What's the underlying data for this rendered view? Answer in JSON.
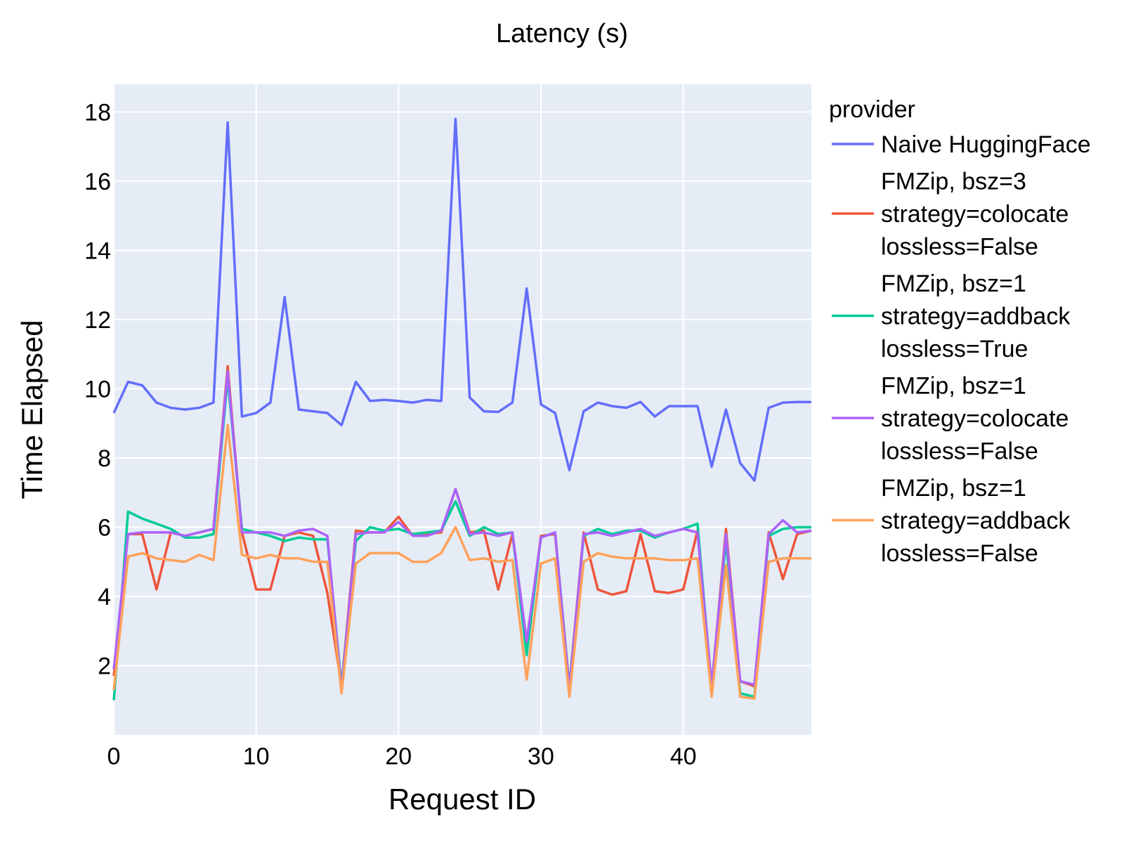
{
  "chart_data": {
    "type": "line",
    "title": "Latency (s)",
    "xlabel": "Request ID",
    "ylabel": "Time Elapsed",
    "xlim": [
      0,
      49
    ],
    "ylim": [
      0,
      18.8
    ],
    "xticks": [
      0,
      10,
      20,
      30,
      40
    ],
    "yticks": [
      2,
      4,
      6,
      8,
      10,
      12,
      14,
      16,
      18
    ],
    "grid": true,
    "background": "#E5ECF6",
    "legend_title": "provider",
    "legend_position": "right",
    "x": [
      0,
      1,
      2,
      3,
      4,
      5,
      6,
      7,
      8,
      9,
      10,
      11,
      12,
      13,
      14,
      15,
      16,
      17,
      18,
      19,
      20,
      21,
      22,
      23,
      24,
      25,
      26,
      27,
      28,
      29,
      30,
      31,
      32,
      33,
      34,
      35,
      36,
      37,
      38,
      39,
      40,
      41,
      42,
      43,
      44,
      45,
      46,
      47,
      48,
      49
    ],
    "series": [
      {
        "name": "Naive HuggingFace",
        "name_lines": [
          "Naive HuggingFace"
        ],
        "color": "#636EFA",
        "values": [
          9.3,
          10.2,
          10.1,
          9.6,
          9.45,
          9.4,
          9.45,
          9.6,
          17.7,
          9.2,
          9.3,
          9.6,
          12.65,
          9.4,
          9.35,
          9.3,
          8.95,
          10.2,
          9.65,
          9.68,
          9.65,
          9.6,
          9.68,
          9.65,
          17.8,
          9.75,
          9.35,
          9.33,
          9.6,
          12.9,
          9.55,
          9.3,
          7.65,
          9.35,
          9.6,
          9.5,
          9.45,
          9.62,
          9.2,
          9.5,
          9.5,
          9.5,
          7.75,
          9.4,
          7.85,
          7.35,
          9.45,
          9.6,
          9.62,
          9.62
        ]
      },
      {
        "name": "FMZip, bsz=3 strategy=colocate lossless=False",
        "name_lines": [
          "FMZip, bsz=3",
          "strategy=colocate",
          "lossless=False"
        ],
        "color": "#EF553B",
        "values": [
          1.7,
          5.8,
          5.8,
          4.2,
          5.85,
          5.75,
          5.85,
          5.95,
          10.65,
          5.85,
          4.2,
          4.2,
          5.75,
          5.85,
          5.75,
          4.1,
          1.4,
          5.9,
          5.85,
          5.85,
          6.3,
          5.75,
          5.8,
          5.85,
          7.1,
          5.85,
          5.9,
          4.2,
          5.8,
          2.5,
          5.75,
          5.8,
          1.4,
          5.85,
          4.2,
          4.05,
          4.15,
          5.8,
          4.15,
          4.1,
          4.2,
          5.9,
          1.4,
          5.95,
          1.55,
          1.4,
          5.85,
          4.5,
          5.8,
          5.9
        ]
      },
      {
        "name": "FMZip, bsz=1 strategy=addback lossless=True",
        "name_lines": [
          "FMZip, bsz=1",
          "strategy=addback",
          "lossless=True"
        ],
        "color": "#00CC96",
        "values": [
          1.0,
          6.45,
          6.25,
          6.1,
          5.95,
          5.7,
          5.7,
          5.8,
          10.3,
          5.95,
          5.85,
          5.75,
          5.6,
          5.7,
          5.65,
          5.65,
          1.4,
          5.6,
          6.0,
          5.9,
          5.95,
          5.8,
          5.85,
          5.9,
          6.75,
          5.75,
          6.0,
          5.8,
          5.85,
          2.3,
          5.7,
          5.85,
          1.35,
          5.75,
          5.95,
          5.8,
          5.9,
          5.9,
          5.7,
          5.85,
          5.95,
          6.1,
          1.3,
          5.6,
          1.2,
          1.1,
          5.75,
          5.95,
          6.0,
          6.0
        ]
      },
      {
        "name": "FMZip, bsz=1 strategy=colocate lossless=False",
        "name_lines": [
          "FMZip, bsz=1",
          "strategy=colocate",
          "lossless=False"
        ],
        "color": "#AB63FA",
        "values": [
          1.9,
          5.8,
          5.85,
          5.85,
          5.85,
          5.75,
          5.85,
          5.95,
          10.5,
          5.85,
          5.85,
          5.85,
          5.75,
          5.9,
          5.95,
          5.75,
          1.3,
          5.8,
          5.85,
          5.85,
          6.15,
          5.75,
          5.75,
          5.9,
          7.1,
          5.8,
          5.85,
          5.75,
          5.85,
          2.7,
          5.7,
          5.85,
          1.3,
          5.8,
          5.85,
          5.75,
          5.85,
          5.95,
          5.75,
          5.85,
          5.95,
          5.85,
          1.4,
          5.8,
          1.55,
          1.45,
          5.8,
          6.2,
          5.85,
          5.9
        ]
      },
      {
        "name": "FMZip, bsz=1 strategy=addback lossless=False",
        "name_lines": [
          "FMZip, bsz=1",
          "strategy=addback",
          "lossless=False"
        ],
        "color": "#FFA15A",
        "values": [
          1.3,
          5.15,
          5.25,
          5.1,
          5.05,
          5.0,
          5.2,
          5.05,
          8.95,
          5.2,
          5.1,
          5.2,
          5.1,
          5.1,
          5.0,
          5.0,
          1.2,
          4.95,
          5.25,
          5.25,
          5.25,
          5.0,
          5.0,
          5.25,
          6.0,
          5.05,
          5.1,
          5.0,
          5.05,
          1.6,
          4.95,
          5.1,
          1.1,
          5.0,
          5.25,
          5.15,
          5.1,
          5.1,
          5.1,
          5.05,
          5.05,
          5.1,
          1.1,
          4.9,
          1.1,
          1.05,
          5.0,
          5.1,
          5.1,
          5.1
        ]
      }
    ]
  }
}
